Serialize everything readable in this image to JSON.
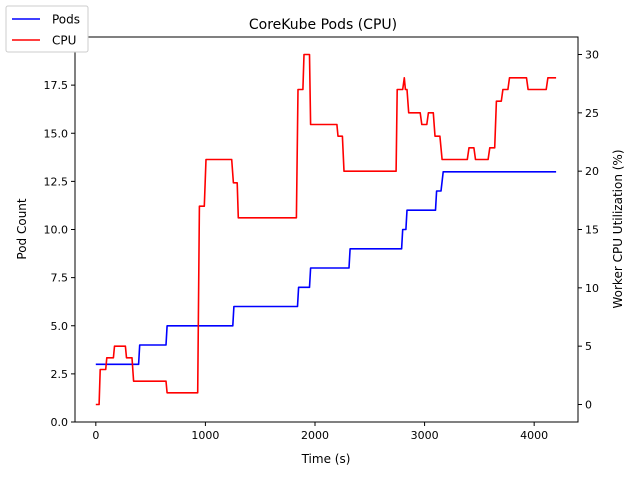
{
  "chart_data": {
    "type": "line",
    "title": "CoreKube Pods (CPU)",
    "xlabel": "Time (s)",
    "ylabel_left": "Pod Count",
    "ylabel_right": "Worker CPU Utilization (%)",
    "xlim": [
      -190,
      4400
    ],
    "ylim_left": [
      0,
      20
    ],
    "ylim_right": [
      -1.5,
      31.5
    ],
    "x_ticks": [
      0,
      1000,
      2000,
      3000,
      4000
    ],
    "x_tick_labels": [
      "0",
      "1000",
      "2000",
      "3000",
      "4000"
    ],
    "y_left_ticks": [
      0,
      2.5,
      5,
      7.5,
      10,
      12.5,
      15,
      17.5,
      20
    ],
    "y_left_tick_labels": [
      "0.0",
      "2.5",
      "5.0",
      "7.5",
      "10.0",
      "12.5",
      "15.0",
      "17.5",
      "20.0"
    ],
    "y_right_ticks": [
      0,
      5,
      10,
      15,
      20,
      25,
      30
    ],
    "y_right_tick_labels": [
      "0",
      "5",
      "10",
      "15",
      "20",
      "25",
      "30"
    ],
    "grid": false,
    "legend_position": "top-left",
    "series": [
      {
        "name": "Pods",
        "axis": "left",
        "color": "#0000ff",
        "points": [
          [
            0,
            3
          ],
          [
            390,
            3
          ],
          [
            400,
            4
          ],
          [
            640,
            4
          ],
          [
            650,
            5
          ],
          [
            1250,
            5
          ],
          [
            1260,
            6
          ],
          [
            1840,
            6
          ],
          [
            1850,
            7
          ],
          [
            1950,
            7
          ],
          [
            1960,
            8
          ],
          [
            2310,
            8
          ],
          [
            2320,
            9
          ],
          [
            2790,
            9
          ],
          [
            2800,
            10
          ],
          [
            2830,
            10
          ],
          [
            2840,
            11
          ],
          [
            3100,
            11
          ],
          [
            3110,
            12
          ],
          [
            3150,
            12
          ],
          [
            3170,
            13
          ],
          [
            4200,
            13
          ]
        ]
      },
      {
        "name": "CPU",
        "axis": "right",
        "color": "#ff0000",
        "points": [
          [
            0,
            0
          ],
          [
            30,
            0
          ],
          [
            40,
            3
          ],
          [
            90,
            3
          ],
          [
            100,
            4
          ],
          [
            160,
            4
          ],
          [
            170,
            5
          ],
          [
            270,
            5
          ],
          [
            280,
            4
          ],
          [
            330,
            4
          ],
          [
            345,
            2
          ],
          [
            640,
            2
          ],
          [
            650,
            1
          ],
          [
            930,
            1
          ],
          [
            945,
            17
          ],
          [
            990,
            17
          ],
          [
            1005,
            21
          ],
          [
            1240,
            21
          ],
          [
            1255,
            19
          ],
          [
            1290,
            19
          ],
          [
            1300,
            16
          ],
          [
            1830,
            16
          ],
          [
            1845,
            27
          ],
          [
            1890,
            27
          ],
          [
            1900,
            30
          ],
          [
            1950,
            30
          ],
          [
            1960,
            24
          ],
          [
            2200,
            24
          ],
          [
            2210,
            23
          ],
          [
            2250,
            23
          ],
          [
            2265,
            20
          ],
          [
            2740,
            20
          ],
          [
            2750,
            27
          ],
          [
            2800,
            27
          ],
          [
            2815,
            28
          ],
          [
            2825,
            27
          ],
          [
            2840,
            27
          ],
          [
            2855,
            25
          ],
          [
            2960,
            25
          ],
          [
            2975,
            24
          ],
          [
            3020,
            24
          ],
          [
            3035,
            25
          ],
          [
            3080,
            25
          ],
          [
            3095,
            23
          ],
          [
            3140,
            23
          ],
          [
            3160,
            21
          ],
          [
            3390,
            21
          ],
          [
            3405,
            22
          ],
          [
            3450,
            22
          ],
          [
            3465,
            21
          ],
          [
            3580,
            21
          ],
          [
            3595,
            22
          ],
          [
            3640,
            22
          ],
          [
            3655,
            26
          ],
          [
            3700,
            26
          ],
          [
            3715,
            27
          ],
          [
            3760,
            27
          ],
          [
            3775,
            28
          ],
          [
            3930,
            28
          ],
          [
            3945,
            27
          ],
          [
            4110,
            27
          ],
          [
            4125,
            28
          ],
          [
            4200,
            28
          ]
        ]
      }
    ]
  }
}
